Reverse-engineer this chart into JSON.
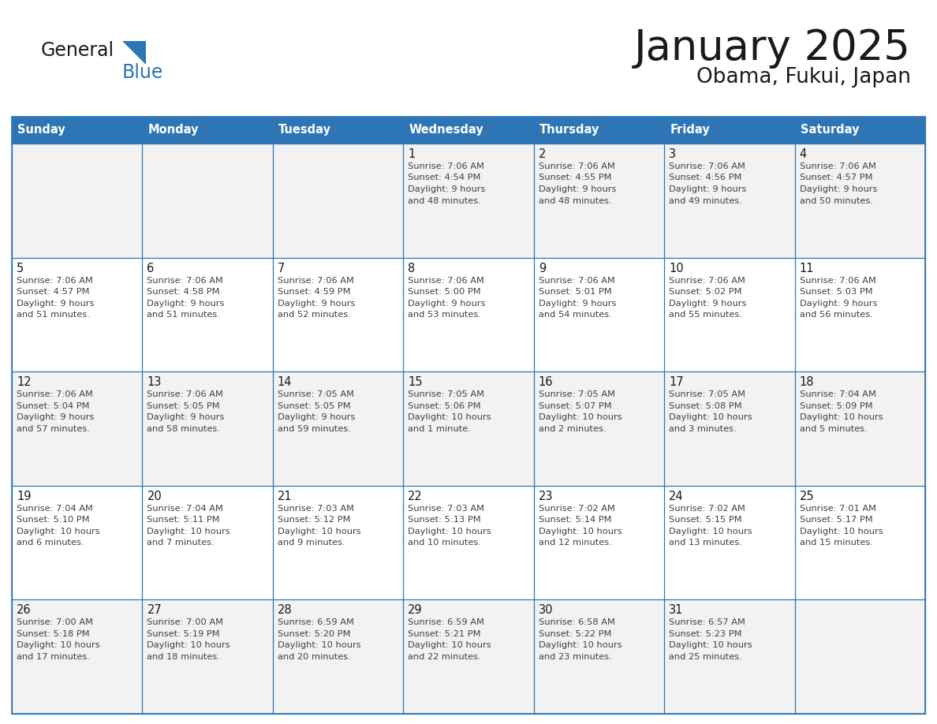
{
  "title": "January 2025",
  "subtitle": "Obama, Fukui, Japan",
  "header_bg": "#2E75B6",
  "header_text_color": "#FFFFFF",
  "border_color": "#2E75B6",
  "days_of_week": [
    "Sunday",
    "Monday",
    "Tuesday",
    "Wednesday",
    "Thursday",
    "Friday",
    "Saturday"
  ],
  "title_color": "#1a1a1a",
  "subtitle_color": "#1a1a1a",
  "day_num_color": "#1a1a1a",
  "cell_text_color": "#404040",
  "logo_general_color": "#1a1a1a",
  "logo_blue_color": "#2E75B6",
  "logo_triangle_color": "#2E75B6",
  "weeks": [
    [
      {
        "day": "",
        "info": ""
      },
      {
        "day": "",
        "info": ""
      },
      {
        "day": "",
        "info": ""
      },
      {
        "day": "1",
        "info": "Sunrise: 7:06 AM\nSunset: 4:54 PM\nDaylight: 9 hours\nand 48 minutes."
      },
      {
        "day": "2",
        "info": "Sunrise: 7:06 AM\nSunset: 4:55 PM\nDaylight: 9 hours\nand 48 minutes."
      },
      {
        "day": "3",
        "info": "Sunrise: 7:06 AM\nSunset: 4:56 PM\nDaylight: 9 hours\nand 49 minutes."
      },
      {
        "day": "4",
        "info": "Sunrise: 7:06 AM\nSunset: 4:57 PM\nDaylight: 9 hours\nand 50 minutes."
      }
    ],
    [
      {
        "day": "5",
        "info": "Sunrise: 7:06 AM\nSunset: 4:57 PM\nDaylight: 9 hours\nand 51 minutes."
      },
      {
        "day": "6",
        "info": "Sunrise: 7:06 AM\nSunset: 4:58 PM\nDaylight: 9 hours\nand 51 minutes."
      },
      {
        "day": "7",
        "info": "Sunrise: 7:06 AM\nSunset: 4:59 PM\nDaylight: 9 hours\nand 52 minutes."
      },
      {
        "day": "8",
        "info": "Sunrise: 7:06 AM\nSunset: 5:00 PM\nDaylight: 9 hours\nand 53 minutes."
      },
      {
        "day": "9",
        "info": "Sunrise: 7:06 AM\nSunset: 5:01 PM\nDaylight: 9 hours\nand 54 minutes."
      },
      {
        "day": "10",
        "info": "Sunrise: 7:06 AM\nSunset: 5:02 PM\nDaylight: 9 hours\nand 55 minutes."
      },
      {
        "day": "11",
        "info": "Sunrise: 7:06 AM\nSunset: 5:03 PM\nDaylight: 9 hours\nand 56 minutes."
      }
    ],
    [
      {
        "day": "12",
        "info": "Sunrise: 7:06 AM\nSunset: 5:04 PM\nDaylight: 9 hours\nand 57 minutes."
      },
      {
        "day": "13",
        "info": "Sunrise: 7:06 AM\nSunset: 5:05 PM\nDaylight: 9 hours\nand 58 minutes."
      },
      {
        "day": "14",
        "info": "Sunrise: 7:05 AM\nSunset: 5:05 PM\nDaylight: 9 hours\nand 59 minutes."
      },
      {
        "day": "15",
        "info": "Sunrise: 7:05 AM\nSunset: 5:06 PM\nDaylight: 10 hours\nand 1 minute."
      },
      {
        "day": "16",
        "info": "Sunrise: 7:05 AM\nSunset: 5:07 PM\nDaylight: 10 hours\nand 2 minutes."
      },
      {
        "day": "17",
        "info": "Sunrise: 7:05 AM\nSunset: 5:08 PM\nDaylight: 10 hours\nand 3 minutes."
      },
      {
        "day": "18",
        "info": "Sunrise: 7:04 AM\nSunset: 5:09 PM\nDaylight: 10 hours\nand 5 minutes."
      }
    ],
    [
      {
        "day": "19",
        "info": "Sunrise: 7:04 AM\nSunset: 5:10 PM\nDaylight: 10 hours\nand 6 minutes."
      },
      {
        "day": "20",
        "info": "Sunrise: 7:04 AM\nSunset: 5:11 PM\nDaylight: 10 hours\nand 7 minutes."
      },
      {
        "day": "21",
        "info": "Sunrise: 7:03 AM\nSunset: 5:12 PM\nDaylight: 10 hours\nand 9 minutes."
      },
      {
        "day": "22",
        "info": "Sunrise: 7:03 AM\nSunset: 5:13 PM\nDaylight: 10 hours\nand 10 minutes."
      },
      {
        "day": "23",
        "info": "Sunrise: 7:02 AM\nSunset: 5:14 PM\nDaylight: 10 hours\nand 12 minutes."
      },
      {
        "day": "24",
        "info": "Sunrise: 7:02 AM\nSunset: 5:15 PM\nDaylight: 10 hours\nand 13 minutes."
      },
      {
        "day": "25",
        "info": "Sunrise: 7:01 AM\nSunset: 5:17 PM\nDaylight: 10 hours\nand 15 minutes."
      }
    ],
    [
      {
        "day": "26",
        "info": "Sunrise: 7:00 AM\nSunset: 5:18 PM\nDaylight: 10 hours\nand 17 minutes."
      },
      {
        "day": "27",
        "info": "Sunrise: 7:00 AM\nSunset: 5:19 PM\nDaylight: 10 hours\nand 18 minutes."
      },
      {
        "day": "28",
        "info": "Sunrise: 6:59 AM\nSunset: 5:20 PM\nDaylight: 10 hours\nand 20 minutes."
      },
      {
        "day": "29",
        "info": "Sunrise: 6:59 AM\nSunset: 5:21 PM\nDaylight: 10 hours\nand 22 minutes."
      },
      {
        "day": "30",
        "info": "Sunrise: 6:58 AM\nSunset: 5:22 PM\nDaylight: 10 hours\nand 23 minutes."
      },
      {
        "day": "31",
        "info": "Sunrise: 6:57 AM\nSunset: 5:23 PM\nDaylight: 10 hours\nand 25 minutes."
      },
      {
        "day": "",
        "info": ""
      }
    ]
  ]
}
